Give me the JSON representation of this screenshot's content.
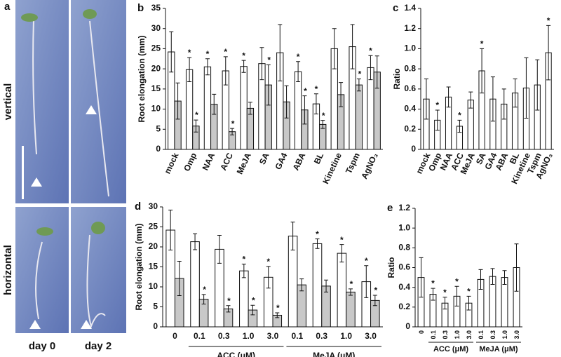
{
  "photo_panel": {
    "label": "a",
    "rows": [
      "vertical",
      "horizontal"
    ],
    "columns": [
      "day 0",
      "day 2"
    ]
  },
  "chart_data": [
    {
      "type": "bar",
      "panel": "b",
      "y_label": "Root elongation (mm)",
      "categories": [
        "mock",
        "Omp",
        "NAA",
        "ACC",
        "MeJA",
        "SA",
        "GA4",
        "ABA",
        "BL",
        "Kinetine",
        "Tspm",
        "AgNO₃"
      ],
      "ylim": [
        0,
        35
      ],
      "yticks": [
        0,
        5,
        10,
        15,
        20,
        25,
        30,
        35
      ],
      "series": [
        {
          "color": "#ffffff",
          "values": [
            24.2,
            19.8,
            20.5,
            19.5,
            20.6,
            21.3,
            24.0,
            19.3,
            11.3,
            25.0,
            25.5,
            20.3
          ],
          "errors": [
            5,
            3,
            2,
            3.5,
            1.5,
            4,
            7,
            2.5,
            2.5,
            5,
            5.5,
            3
          ],
          "significance": [
            null,
            "*",
            "*",
            "*",
            "*",
            null,
            null,
            "*",
            "*",
            null,
            null,
            "*"
          ]
        },
        {
          "color": "#c8c8c8",
          "values": [
            12.0,
            5.8,
            11.2,
            4.4,
            10.2,
            16.0,
            11.8,
            9.8,
            6.2,
            13.6,
            16.0,
            19.2
          ],
          "errors": [
            4.5,
            1.5,
            2.5,
            0.8,
            1.5,
            5,
            4,
            3.5,
            1,
            3,
            1.5,
            4
          ],
          "significance": [
            null,
            "*",
            null,
            "*",
            null,
            "*",
            null,
            "*",
            "*",
            null,
            "*",
            null
          ]
        }
      ]
    },
    {
      "type": "bar",
      "panel": "c",
      "y_label": "Ratio",
      "categories": [
        "mock",
        "Omp",
        "NAA",
        "ACC",
        "MeJA",
        "SA",
        "GA4",
        "ABA",
        "BL",
        "Kinetine",
        "Tspm",
        "AgNO₃"
      ],
      "ylim": [
        0,
        1.4
      ],
      "yticks": [
        0,
        0.2,
        0.4,
        0.6,
        0.8,
        {
          "value": 1,
          "label": "1.0"
        },
        1.2,
        1.4
      ],
      "series": [
        {
          "color": "#ffffff",
          "values": [
            0.5,
            0.29,
            0.52,
            0.23,
            0.49,
            0.78,
            0.5,
            0.45,
            0.56,
            0.61,
            0.64,
            0.96
          ],
          "errors": [
            0.2,
            0.1,
            0.1,
            0.06,
            0.08,
            0.22,
            0.22,
            0.15,
            0.14,
            0.3,
            0.25,
            0.27
          ],
          "significance": [
            null,
            "*",
            null,
            "*",
            null,
            "*",
            null,
            null,
            null,
            null,
            null,
            "*"
          ]
        }
      ]
    },
    {
      "type": "bar",
      "panel": "d",
      "y_label": "Root elongation (mm)",
      "categories": [
        "0",
        "0.1",
        "0.3",
        "1.0",
        "3.0",
        "0.1",
        "0.3",
        "1.0",
        "3.0"
      ],
      "groups": [
        {
          "label": "ACC (μM)",
          "from": 1,
          "to": 4
        },
        {
          "label": "MeJA (μM)",
          "from": 5,
          "to": 8
        }
      ],
      "ylim": [
        0,
        30
      ],
      "yticks": [
        0,
        5,
        10,
        15,
        20,
        25,
        30
      ],
      "series": [
        {
          "color": "#ffffff",
          "values": [
            24.2,
            21.3,
            19.4,
            14.0,
            12.4,
            22.7,
            20.8,
            18.4,
            11.3
          ],
          "errors": [
            5,
            2,
            3.5,
            1.7,
            2.7,
            3.5,
            1.2,
            2.2,
            4
          ],
          "significance": [
            null,
            null,
            null,
            "*",
            "*",
            null,
            "*",
            "*",
            "*"
          ]
        },
        {
          "color": "#c8c8c8",
          "values": [
            12.1,
            6.9,
            4.5,
            4.2,
            2.9,
            10.5,
            10.2,
            8.7,
            6.6
          ],
          "errors": [
            4.3,
            1.2,
            0.8,
            1.2,
            0.6,
            1.5,
            1.5,
            0.8,
            1.3
          ],
          "significance": [
            null,
            "*",
            "*",
            "*",
            "*",
            null,
            null,
            "*",
            "*"
          ]
        }
      ]
    },
    {
      "type": "bar",
      "panel": "e",
      "y_label": "Ratio",
      "categories": [
        "0",
        "0.1",
        "0.3",
        "1.0",
        "3.0",
        "0.1",
        "0.3",
        "1.0",
        "3.0"
      ],
      "groups": [
        {
          "label": "ACC (μM)",
          "from": 1,
          "to": 4
        },
        {
          "label": "MeJA (μM)",
          "from": 5,
          "to": 8
        }
      ],
      "ylim": [
        0,
        1.2
      ],
      "yticks": [
        0,
        0.2,
        0.4,
        0.6,
        0.8,
        {
          "value": 1,
          "label": "1.0"
        },
        1.2
      ],
      "series": [
        {
          "color": "#ffffff",
          "values": [
            0.5,
            0.33,
            0.24,
            0.31,
            0.24,
            0.48,
            0.51,
            0.5,
            0.6
          ],
          "errors": [
            0.2,
            0.06,
            0.06,
            0.1,
            0.07,
            0.1,
            0.08,
            0.07,
            0.24
          ],
          "significance": [
            null,
            "*",
            "*",
            "*",
            "*",
            null,
            null,
            null,
            null
          ]
        }
      ]
    }
  ]
}
